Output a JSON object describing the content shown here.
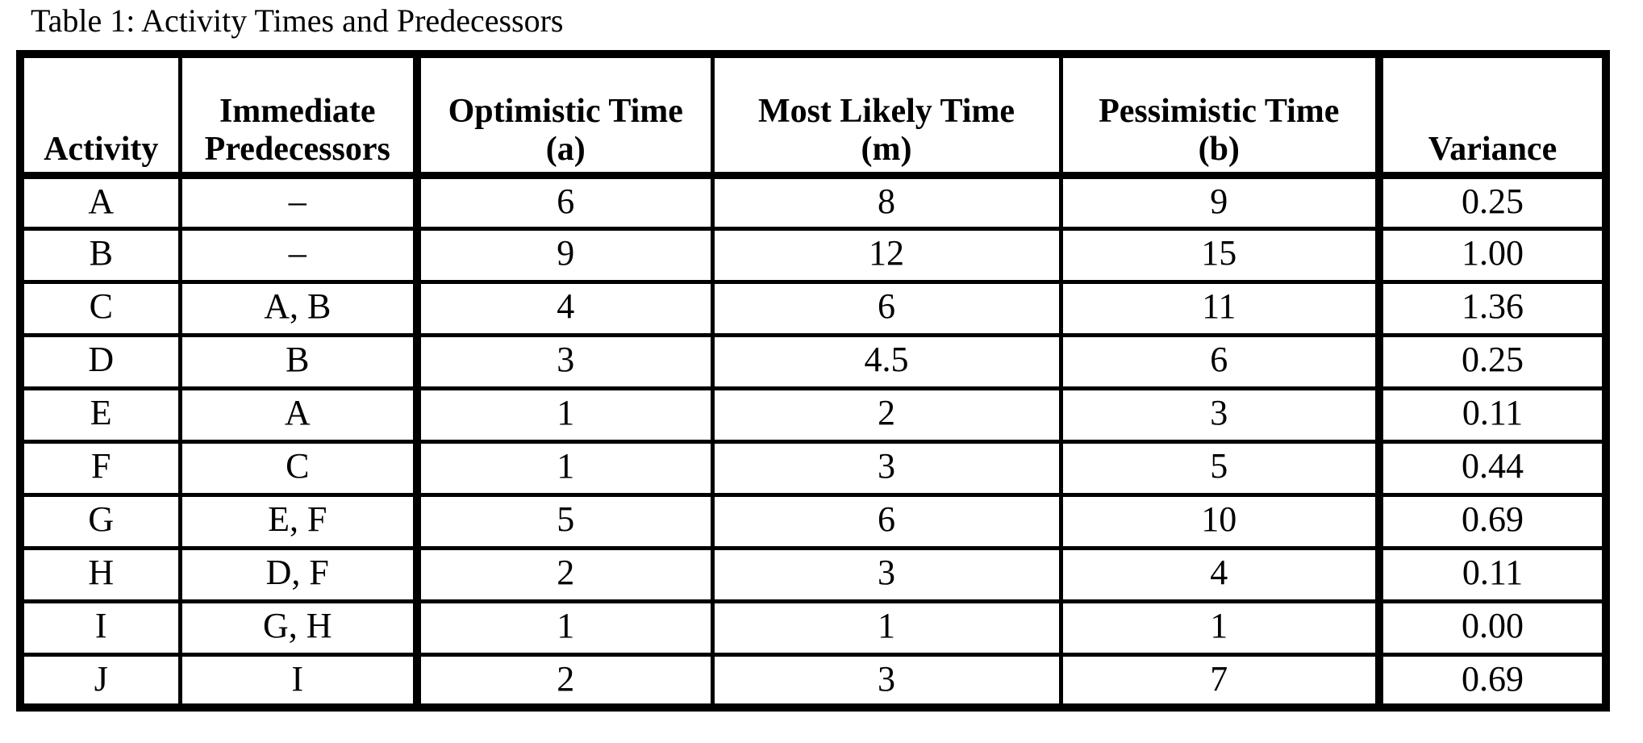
{
  "caption": "Table 1: Activity Times and Predecessors",
  "colors": {
    "background": "#ffffff",
    "text": "#000000",
    "border": "#000000"
  },
  "table": {
    "column_keys": [
      "activity",
      "predecessors",
      "optimistic",
      "most_likely",
      "pessimistic",
      "variance"
    ],
    "header": {
      "activity": "Activity",
      "immediate_line1": "Immediate",
      "immediate_line2": "Predecessors",
      "optimistic_line1": "Optimistic Time",
      "optimistic_line2": "(a)",
      "most_likely_line1": "Most Likely Time",
      "most_likely_line2": "(m)",
      "pessimistic_line1": "Pessimistic Time",
      "pessimistic_line2": "(b)",
      "variance": "Variance"
    },
    "rows": [
      {
        "activity": "A",
        "predecessors": "–",
        "optimistic": "6",
        "most_likely": "8",
        "pessimistic": "9",
        "variance": "0.25"
      },
      {
        "activity": "B",
        "predecessors": "–",
        "optimistic": "9",
        "most_likely": "12",
        "pessimistic": "15",
        "variance": "1.00"
      },
      {
        "activity": "C",
        "predecessors": "A, B",
        "optimistic": "4",
        "most_likely": "6",
        "pessimistic": "11",
        "variance": "1.36"
      },
      {
        "activity": "D",
        "predecessors": "B",
        "optimistic": "3",
        "most_likely": "4.5",
        "pessimistic": "6",
        "variance": "0.25"
      },
      {
        "activity": "E",
        "predecessors": "A",
        "optimistic": "1",
        "most_likely": "2",
        "pessimistic": "3",
        "variance": "0.11"
      },
      {
        "activity": "F",
        "predecessors": "C",
        "optimistic": "1",
        "most_likely": "3",
        "pessimistic": "5",
        "variance": "0.44"
      },
      {
        "activity": "G",
        "predecessors": "E, F",
        "optimistic": "5",
        "most_likely": "6",
        "pessimistic": "10",
        "variance": "0.69"
      },
      {
        "activity": "H",
        "predecessors": "D, F",
        "optimistic": "2",
        "most_likely": "3",
        "pessimistic": "4",
        "variance": "0.11"
      },
      {
        "activity": "I",
        "predecessors": "G, H",
        "optimistic": "1",
        "most_likely": "1",
        "pessimistic": "1",
        "variance": "0.00"
      },
      {
        "activity": "J",
        "predecessors": "I",
        "optimistic": "2",
        "most_likely": "3",
        "pessimistic": "7",
        "variance": "0.69"
      }
    ]
  }
}
